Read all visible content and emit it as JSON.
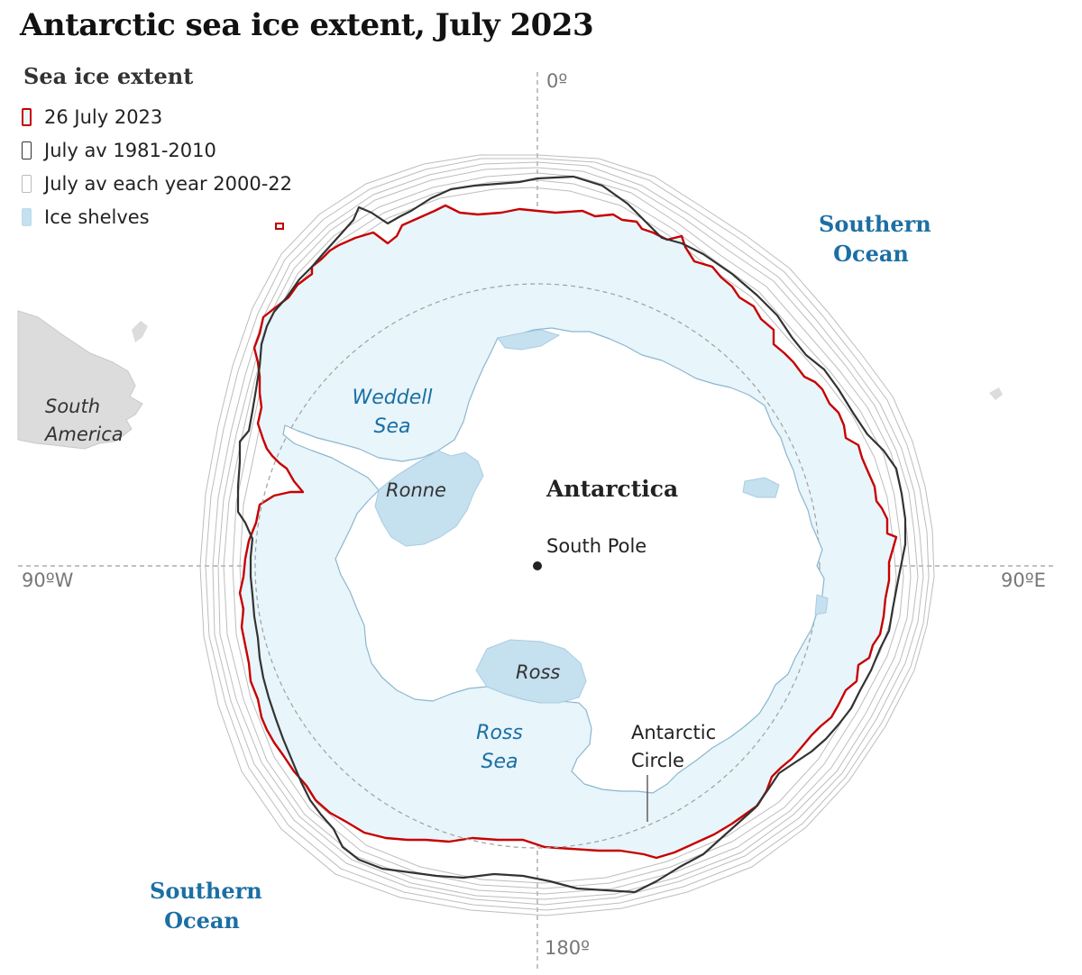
{
  "title": "Antarctic sea ice extent, July 2023",
  "legend": {
    "title": "Sea ice extent",
    "items": [
      {
        "label": "26 July 2023",
        "stroke": "#c70000",
        "fill": "#eaf6fb"
      },
      {
        "label": "July av 1981-2010",
        "stroke": "#333333",
        "fill": "#ffffff"
      },
      {
        "label": "July av each year 2000-22",
        "stroke": "#bbbbbb",
        "fill": "#ffffff"
      },
      {
        "label": "Ice shelves",
        "stroke": "#bcdcec",
        "fill": "#c5e0ef"
      }
    ]
  },
  "axes": {
    "top": "0º",
    "bottom": "180º",
    "left": "90ºW",
    "right": "90ºE"
  },
  "labels": {
    "southern_ocean_top": [
      "Southern",
      "Ocean"
    ],
    "southern_ocean_bottom": [
      "Southern",
      "Ocean"
    ],
    "south_america": [
      "South",
      "America"
    ],
    "weddell_sea": [
      "Weddell",
      "Sea"
    ],
    "ronne": "Ronne",
    "antarctica": "Antarctica",
    "south_pole": "South Pole",
    "ross": "Ross",
    "ross_sea": [
      "Ross",
      "Sea"
    ],
    "antarctic_circle": [
      "Antarctic",
      "Circle"
    ]
  },
  "colors": {
    "sea_ice_2023": "#c70000",
    "average_1981_2010": "#333333",
    "yearly_averages": "#bbbbbb",
    "ice_fill": "#e8f5fb",
    "ice_shelves": "#c5e0ef",
    "land": "#ffffff",
    "other_land": "#dddddd",
    "ocean_label": "#1c6fa3",
    "graticule": "#999999"
  }
}
